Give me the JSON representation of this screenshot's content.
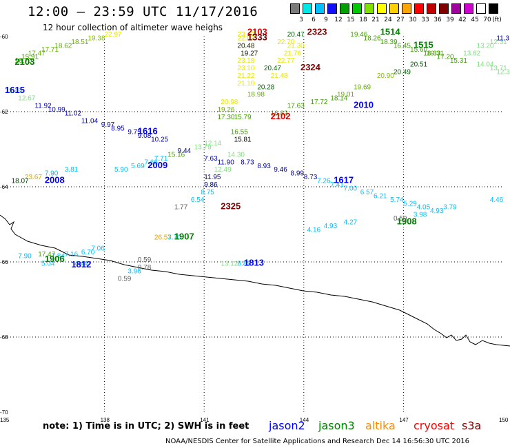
{
  "title": "12:00 – 23:59 UTC 11/17/2016",
  "subtitle": "12 hour collection of altimeter wave heighs",
  "legend": {
    "unit": "(ft)",
    "colors": [
      "#7a7a7a",
      "#00e5e5",
      "#00c0ff",
      "#1010ff",
      "#00a000",
      "#00c800",
      "#80e000",
      "#ffff00",
      "#ffd000",
      "#ffa500",
      "#ff0000",
      "#c00000",
      "#800000",
      "#a000a0",
      "#d000d0",
      "#ffffff",
      "#000000"
    ],
    "labels": [
      "3",
      "6",
      "9",
      "12",
      "15",
      "18",
      "21",
      "24",
      "27",
      "30",
      "33",
      "36",
      "39",
      "42",
      "45",
      "70"
    ]
  },
  "axes": {
    "lat_labels": [
      "-60",
      "-62",
      "-64",
      "-66",
      "-68",
      "-70"
    ],
    "lon_labels": [
      "135",
      "138",
      "141",
      "144",
      "147",
      "150"
    ]
  },
  "note": "note: 1) Time is in UTC; 2) SWH is in feet",
  "satellites": [
    {
      "name": "jason2",
      "color": "#0000ff"
    },
    {
      "name": "jason3",
      "color": "#008000"
    },
    {
      "name": "altika",
      "color": "#ff8c00"
    },
    {
      "name": "cryosat",
      "color": "#ff0000"
    },
    {
      "name": "s3a",
      "color": "#800000"
    }
  ],
  "footer": "NOAA/NESDIS Center for Satellite Applications and Research    Dec 14 16:56:30 UTC 2016",
  "observations": [
    {
      "lon": 142.0,
      "lat": -60.0,
      "swh": "23.47",
      "color": "#e6e600"
    },
    {
      "lon": 138.0,
      "lat": -60.0,
      "swh": "22.97",
      "color": "#e6e600"
    },
    {
      "lon": 137.5,
      "lat": -60.1,
      "swh": "19.38",
      "color": "#80c000"
    },
    {
      "lon": 137.0,
      "lat": -60.2,
      "swh": "18.51",
      "color": "#60b000"
    },
    {
      "lon": 136.5,
      "lat": -60.3,
      "swh": "18.62",
      "color": "#60b000"
    },
    {
      "lon": 136.1,
      "lat": -60.4,
      "swh": "17.71",
      "color": "#60b000"
    },
    {
      "lon": 135.7,
      "lat": -60.5,
      "swh": "17.47",
      "color": "#60b000"
    },
    {
      "lon": 135.3,
      "lat": -60.7,
      "swh": "16.70",
      "color": "#40a000"
    },
    {
      "lon": 135.5,
      "lat": -60.6,
      "swh": "15.91",
      "color": "#40a000"
    },
    {
      "lon": 142.0,
      "lat": -60.1,
      "swh": "22.07",
      "color": "#e6e600"
    },
    {
      "lon": 142.0,
      "lat": -60.3,
      "swh": "20.48",
      "color": "#202000"
    },
    {
      "lon": 142.1,
      "lat": -60.5,
      "swh": "19.27",
      "color": "#202000"
    },
    {
      "lon": 142.0,
      "lat": -60.7,
      "swh": "23.18",
      "color": "#e6e600"
    },
    {
      "lon": 142.0,
      "lat": -60.9,
      "swh": "23.10",
      "color": "#e6e600"
    },
    {
      "lon": 142.0,
      "lat": -61.1,
      "swh": "21.22",
      "color": "#e6e600"
    },
    {
      "lon": 142.0,
      "lat": -61.3,
      "swh": "21.10",
      "color": "#e6e600"
    },
    {
      "lon": 143.0,
      "lat": -61.1,
      "swh": "21.48",
      "color": "#e6e600"
    },
    {
      "lon": 143.5,
      "lat": -60.0,
      "swh": "20.47",
      "color": "#006000"
    },
    {
      "lon": 143.5,
      "lat": -60.3,
      "swh": "21.30",
      "color": "#e6e600"
    },
    {
      "lon": 143.2,
      "lat": -60.2,
      "swh": "22.70",
      "color": "#e6e600"
    },
    {
      "lon": 143.4,
      "lat": -60.5,
      "swh": "21.76",
      "color": "#e6e600"
    },
    {
      "lon": 143.2,
      "lat": -60.7,
      "swh": "22.77",
      "color": "#e6e600"
    },
    {
      "lon": 142.8,
      "lat": -60.9,
      "swh": "20.47",
      "color": "#006000"
    },
    {
      "lon": 142.6,
      "lat": -61.4,
      "swh": "20.28",
      "color": "#006000"
    },
    {
      "lon": 142.3,
      "lat": -61.6,
      "swh": "18.98",
      "color": "#60b000"
    },
    {
      "lon": 141.5,
      "lat": -61.8,
      "swh": "20.98",
      "color": "#e6e600"
    },
    {
      "lon": 141.4,
      "lat": -62.0,
      "swh": "19.26",
      "color": "#60b000"
    },
    {
      "lon": 141.4,
      "lat": -62.2,
      "swh": "17.30",
      "color": "#40a000"
    },
    {
      "lon": 141.9,
      "lat": -62.2,
      "swh": "15.79",
      "color": "#40a000"
    },
    {
      "lon": 143.0,
      "lat": -62.1,
      "swh": "16.82",
      "color": "#40a000"
    },
    {
      "lon": 143.5,
      "lat": -61.9,
      "swh": "17.63",
      "color": "#40a000"
    },
    {
      "lon": 144.2,
      "lat": -61.8,
      "swh": "17.72",
      "color": "#40a000"
    },
    {
      "lon": 144.8,
      "lat": -61.7,
      "swh": "18.14",
      "color": "#40a000"
    },
    {
      "lon": 145.0,
      "lat": -61.6,
      "swh": "19.01",
      "color": "#60b000"
    },
    {
      "lon": 145.5,
      "lat": -61.4,
      "swh": "19.69",
      "color": "#60b000"
    },
    {
      "lon": 146.2,
      "lat": -61.1,
      "swh": "20.90",
      "color": "#80c000"
    },
    {
      "lon": 146.7,
      "lat": -61.0,
      "swh": "20.49",
      "color": "#006000"
    },
    {
      "lon": 147.2,
      "lat": -60.8,
      "swh": "20.51",
      "color": "#006000"
    },
    {
      "lon": 147.7,
      "lat": -60.5,
      "swh": "19.31",
      "color": "#60b000"
    },
    {
      "lon": 145.4,
      "lat": -60.0,
      "swh": "19.46",
      "color": "#40a000"
    },
    {
      "lon": 145.8,
      "lat": -60.1,
      "swh": "18.26",
      "color": "#40a000"
    },
    {
      "lon": 146.3,
      "lat": -60.2,
      "swh": "18.39",
      "color": "#40a000"
    },
    {
      "lon": 146.7,
      "lat": -60.3,
      "swh": "16.45",
      "color": "#40a000"
    },
    {
      "lon": 147.2,
      "lat": -60.4,
      "swh": "15.60",
      "color": "#40a000"
    },
    {
      "lon": 147.6,
      "lat": -60.5,
      "swh": "18.33",
      "color": "#40a000"
    },
    {
      "lon": 148.0,
      "lat": -60.6,
      "swh": "17.20",
      "color": "#40a000"
    },
    {
      "lon": 148.4,
      "lat": -60.7,
      "swh": "15.31",
      "color": "#40a000"
    },
    {
      "lon": 148.8,
      "lat": -60.5,
      "swh": "13.62",
      "color": "#80e080"
    },
    {
      "lon": 149.2,
      "lat": -60.3,
      "swh": "13.20",
      "color": "#80e080"
    },
    {
      "lon": 149.6,
      "lat": -60.2,
      "swh": "12.31",
      "color": "#80e080"
    },
    {
      "lon": 149.8,
      "lat": -60.1,
      "swh": "11.3",
      "color": "#0000c0"
    },
    {
      "lon": 149.2,
      "lat": -60.8,
      "swh": "14.04",
      "color": "#80e080"
    },
    {
      "lon": 149.6,
      "lat": -60.9,
      "swh": "13.71",
      "color": "#80e080"
    },
    {
      "lon": 149.8,
      "lat": -61.0,
      "swh": "12.30",
      "color": "#80e080"
    },
    {
      "lon": 135.0,
      "lat": -61.5,
      "swh": "12.49",
      "color": "#80e080"
    },
    {
      "lon": 135.4,
      "lat": -61.7,
      "swh": "12.67",
      "color": "#80e080"
    },
    {
      "lon": 135.9,
      "lat": -61.9,
      "swh": "11.92",
      "color": "#0000c0"
    },
    {
      "lon": 136.3,
      "lat": -62.0,
      "swh": "10.99",
      "color": "#0000c0"
    },
    {
      "lon": 136.8,
      "lat": -62.1,
      "swh": "11.02",
      "color": "#0000c0"
    },
    {
      "lon": 137.3,
      "lat": -62.3,
      "swh": "11.04",
      "color": "#0000c0"
    },
    {
      "lon": 137.9,
      "lat": -62.4,
      "swh": "9.97",
      "color": "#0000c0"
    },
    {
      "lon": 138.2,
      "lat": -62.5,
      "swh": "8.95",
      "color": "#0000c0"
    },
    {
      "lon": 138.7,
      "lat": -62.6,
      "swh": "9.75",
      "color": "#0000c0"
    },
    {
      "lon": 139.0,
      "lat": -62.7,
      "swh": "9.08",
      "color": "#0000c0"
    },
    {
      "lon": 139.4,
      "lat": -62.8,
      "swh": "10.25",
      "color": "#0000c0"
    },
    {
      "lon": 140.2,
      "lat": -63.1,
      "swh": "9.44",
      "color": "#000080"
    },
    {
      "lon": 139.9,
      "lat": -63.2,
      "swh": "15.16",
      "color": "#40a000"
    },
    {
      "lon": 139.5,
      "lat": -63.3,
      "swh": "7.71",
      "color": "#00c0ff"
    },
    {
      "lon": 139.2,
      "lat": -63.4,
      "swh": "7.66",
      "color": "#00c0ff"
    },
    {
      "lon": 138.8,
      "lat": -63.5,
      "swh": "5.69",
      "color": "#00c0ff"
    },
    {
      "lon": 138.3,
      "lat": -63.6,
      "swh": "5.90",
      "color": "#00c0ff"
    },
    {
      "lon": 140.7,
      "lat": -63.0,
      "swh": "13.79",
      "color": "#80e080"
    },
    {
      "lon": 141.0,
      "lat": -62.9,
      "swh": "12.14",
      "color": "#80e080"
    },
    {
      "lon": 141.0,
      "lat": -63.3,
      "swh": "7.63",
      "color": "#0000c0"
    },
    {
      "lon": 141.4,
      "lat": -63.4,
      "swh": "11.90",
      "color": "#0000c0"
    },
    {
      "lon": 141.7,
      "lat": -63.2,
      "swh": "14.30",
      "color": "#80e080"
    },
    {
      "lon": 141.8,
      "lat": -62.6,
      "swh": "16.55",
      "color": "#40a000"
    },
    {
      "lon": 141.9,
      "lat": -62.8,
      "swh": "15.81",
      "color": "#000000"
    },
    {
      "lon": 142.1,
      "lat": -63.4,
      "swh": "8.73",
      "color": "#0000c0"
    },
    {
      "lon": 142.6,
      "lat": -63.5,
      "swh": "8.93",
      "color": "#0000c0"
    },
    {
      "lon": 143.1,
      "lat": -63.6,
      "swh": "9.46",
      "color": "#000080"
    },
    {
      "lon": 143.6,
      "lat": -63.7,
      "swh": "8.99",
      "color": "#0000c0"
    },
    {
      "lon": 144.0,
      "lat": -63.8,
      "swh": "8.73",
      "color": "#0000c0"
    },
    {
      "lon": 144.4,
      "lat": -63.9,
      "swh": "7.26",
      "color": "#00c0ff"
    },
    {
      "lon": 144.8,
      "lat": -64.0,
      "swh": "7.41",
      "color": "#00c0ff"
    },
    {
      "lon": 145.2,
      "lat": -64.1,
      "swh": "7.00",
      "color": "#00c0ff"
    },
    {
      "lon": 145.7,
      "lat": -64.2,
      "swh": "6.57",
      "color": "#00c0ff"
    },
    {
      "lon": 146.1,
      "lat": -64.3,
      "swh": "6.21",
      "color": "#00c0ff"
    },
    {
      "lon": 146.6,
      "lat": -64.4,
      "swh": "5.74",
      "color": "#00c0ff"
    },
    {
      "lon": 147.0,
      "lat": -64.5,
      "swh": "5.29",
      "color": "#00c0ff"
    },
    {
      "lon": 147.4,
      "lat": -64.6,
      "swh": "4.05",
      "color": "#00c0ff"
    },
    {
      "lon": 147.8,
      "lat": -64.7,
      "swh": "4.93",
      "color": "#00c0ff"
    },
    {
      "lon": 147.3,
      "lat": -64.8,
      "swh": "3.98",
      "color": "#00c0ff"
    },
    {
      "lon": 148.2,
      "lat": -64.6,
      "swh": "3.79",
      "color": "#00c0ff"
    },
    {
      "lon": 149.6,
      "lat": -64.4,
      "swh": "4.46",
      "color": "#00c0ff"
    },
    {
      "lon": 146.7,
      "lat": -64.9,
      "swh": "0.59",
      "color": "#606060"
    },
    {
      "lon": 145.2,
      "lat": -65.0,
      "swh": "4.27",
      "color": "#00c0ff"
    },
    {
      "lon": 144.6,
      "lat": -65.1,
      "swh": "4.93",
      "color": "#00c0ff"
    },
    {
      "lon": 144.1,
      "lat": -65.2,
      "swh": "4.16",
      "color": "#00c0ff"
    },
    {
      "lon": 141.0,
      "lat": -64.0,
      "swh": "9.86",
      "color": "#000080"
    },
    {
      "lon": 141.0,
      "lat": -63.8,
      "swh": "11.95",
      "color": "#000080"
    },
    {
      "lon": 141.3,
      "lat": -63.6,
      "swh": "12.49",
      "color": "#80e080"
    },
    {
      "lon": 140.9,
      "lat": -64.2,
      "swh": "8.75",
      "color": "#00c0ff"
    },
    {
      "lon": 140.6,
      "lat": -64.4,
      "swh": "6.54",
      "color": "#00c0ff"
    },
    {
      "lon": 140.1,
      "lat": -64.6,
      "swh": "1.77",
      "color": "#606060"
    },
    {
      "lon": 135.2,
      "lat": -63.9,
      "swh": "18.07",
      "color": "#004000"
    },
    {
      "lon": 135.6,
      "lat": -63.8,
      "swh": "23.67",
      "color": "#e6a000"
    },
    {
      "lon": 136.2,
      "lat": -63.7,
      "swh": "7.90",
      "color": "#00c0ff"
    },
    {
      "lon": 136.8,
      "lat": -63.6,
      "swh": "3.81",
      "color": "#00c0ff"
    },
    {
      "lon": 139.5,
      "lat": -65.4,
      "swh": "26.57",
      "color": "#e6a000"
    },
    {
      "lon": 139.9,
      "lat": -65.4,
      "swh": "3.70",
      "color": "#00c0ff"
    },
    {
      "lon": 137.6,
      "lat": -65.7,
      "swh": "7.06",
      "color": "#00c0ff"
    },
    {
      "lon": 137.3,
      "lat": -65.8,
      "swh": "6.70",
      "color": "#00c0ff"
    },
    {
      "lon": 136.8,
      "lat": -65.85,
      "swh": "7.16",
      "color": "#00c0ff"
    },
    {
      "lon": 136.4,
      "lat": -65.9,
      "swh": "7.84",
      "color": "#00c0ff"
    },
    {
      "lon": 136.0,
      "lat": -65.85,
      "swh": "17.47",
      "color": "#40a000"
    },
    {
      "lon": 135.4,
      "lat": -65.9,
      "swh": "7.90",
      "color": "#00c0ff"
    },
    {
      "lon": 136.1,
      "lat": -66.1,
      "swh": "5.04",
      "color": "#00c0ff"
    },
    {
      "lon": 137.1,
      "lat": -66.1,
      "swh": "4.44",
      "color": "#00c0ff"
    },
    {
      "lon": 139.0,
      "lat": -66.0,
      "swh": "0.59",
      "color": "#606060"
    },
    {
      "lon": 139.0,
      "lat": -66.2,
      "swh": "0.78",
      "color": "#606060"
    },
    {
      "lon": 138.7,
      "lat": -66.3,
      "swh": "3.96",
      "color": "#00c0ff"
    },
    {
      "lon": 138.4,
      "lat": -66.5,
      "swh": "0.59",
      "color": "#606060"
    },
    {
      "lon": 141.5,
      "lat": -66.1,
      "swh": "13.12",
      "color": "#80e080"
    },
    {
      "lon": 142.0,
      "lat": -66.1,
      "swh": "8.81",
      "color": "#00c0ff"
    }
  ],
  "stations": [
    {
      "lon": 142.3,
      "lat": -59.95,
      "id": "2103",
      "color": "#e00000"
    },
    {
      "lon": 142.3,
      "lat": -60.1,
      "id": "1333",
      "color": "#800000"
    },
    {
      "lon": 144.1,
      "lat": -59.95,
      "id": "2323",
      "color": "#800000"
    },
    {
      "lon": 143.9,
      "lat": -60.9,
      "id": "2324",
      "color": "#800000"
    },
    {
      "lon": 146.3,
      "lat": -59.95,
      "id": "1514",
      "color": "#008000"
    },
    {
      "lon": 147.3,
      "lat": -60.3,
      "id": "1515",
      "color": "#008000"
    },
    {
      "lon": 135.3,
      "lat": -60.75,
      "id": "2103",
      "color": "#008000"
    },
    {
      "lon": 135.0,
      "lat": -61.5,
      "id": "1615",
      "color": "#0000ff"
    },
    {
      "lon": 143.0,
      "lat": -62.2,
      "id": "2102",
      "color": "#e00000"
    },
    {
      "lon": 145.5,
      "lat": -61.9,
      "id": "2010",
      "color": "#0000ff"
    },
    {
      "lon": 139.0,
      "lat": -62.6,
      "id": "1616",
      "color": "#0000ff"
    },
    {
      "lon": 139.3,
      "lat": -63.5,
      "id": "2009",
      "color": "#0000ff"
    },
    {
      "lon": 144.9,
      "lat": -63.9,
      "id": "1617",
      "color": "#0000ff"
    },
    {
      "lon": 136.2,
      "lat": -63.9,
      "id": "2008",
      "color": "#0000ff"
    },
    {
      "lon": 141.5,
      "lat": -64.6,
      "id": "2325",
      "color": "#800000"
    },
    {
      "lon": 146.8,
      "lat": -65.0,
      "id": "1908",
      "color": "#008000"
    },
    {
      "lon": 140.1,
      "lat": -65.4,
      "id": "1907",
      "color": "#008000"
    },
    {
      "lon": 136.2,
      "lat": -66.0,
      "id": "1906",
      "color": "#008000"
    },
    {
      "lon": 137.0,
      "lat": -66.15,
      "id": "1812",
      "color": "#0000ff"
    },
    {
      "lon": 142.2,
      "lat": -66.1,
      "id": "1813",
      "color": "#0000ff"
    }
  ]
}
